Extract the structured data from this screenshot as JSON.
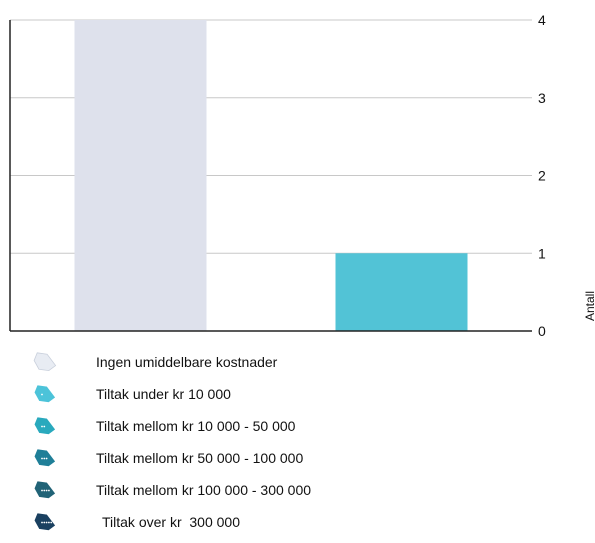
{
  "chart_data": {
    "type": "bar",
    "categories": [
      "Ingen umiddelbare kostnader",
      "Tiltak under kr 10 000"
    ],
    "values": [
      4,
      1
    ],
    "colors": [
      "#dee1ec",
      "#52c3d6"
    ],
    "ylabel": "Antall",
    "ylim": [
      0,
      4
    ],
    "yticks": [
      "0",
      "1",
      "2",
      "3",
      "4"
    ],
    "grid": true,
    "y_axis_side": "right",
    "legend_position": "bottom"
  },
  "legend": [
    {
      "label": "Ingen umiddelbare kostnader",
      "icon": "tag-empty-icon",
      "color": "#e8ecf3"
    },
    {
      "label": "Tiltak under kr 10 000",
      "icon": "tag-1-icon",
      "color": "#4cc3d9"
    },
    {
      "label": "Tiltak mellom kr 10 000 - 50 000",
      "icon": "tag-2-icon",
      "color": "#29a9bd"
    },
    {
      "label": "Tiltak mellom kr 50 000 - 100 000",
      "icon": "tag-3-icon",
      "color": "#1f7f98"
    },
    {
      "label": "Tiltak mellom kr 100 000 - 300 000",
      "icon": "tag-4-icon",
      "color": "#216377"
    },
    {
      "label": "Tiltak over kr  300 000",
      "icon": "tag-5-icon",
      "color": "#1a4060"
    }
  ]
}
